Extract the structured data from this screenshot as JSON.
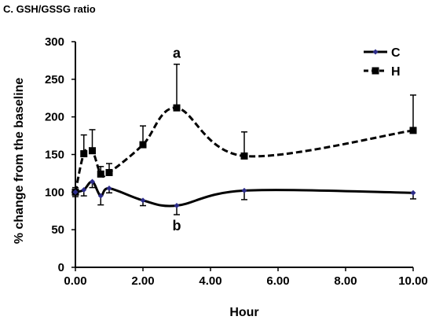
{
  "panel_title": "C. GSH/GSSG ratio",
  "chart_data": {
    "type": "line",
    "title": "C. GSH/GSSG ratio",
    "xlabel": "Hour",
    "ylabel": "% change from the baseline",
    "xlim": [
      0,
      10
    ],
    "ylim": [
      0,
      300
    ],
    "x_ticks": [
      "0.00",
      "2.00",
      "4.00",
      "6.00",
      "8.00",
      "10.00"
    ],
    "y_ticks": [
      "0",
      "50",
      "100",
      "150",
      "200",
      "250",
      "300"
    ],
    "grid": false,
    "legend_position": "top-right",
    "series": [
      {
        "name": "C",
        "color": "#000000",
        "marker_color": "#2d2d8a",
        "line_style": "solid",
        "marker": "diamond",
        "error_direction": "down",
        "x": [
          0,
          0.25,
          0.5,
          0.75,
          1,
          2,
          3,
          5,
          10
        ],
        "y": [
          100,
          103,
          114,
          95,
          105,
          89,
          82,
          102,
          99
        ],
        "error": [
          6,
          8,
          8,
          12,
          6,
          7,
          12,
          12,
          8
        ]
      },
      {
        "name": "H",
        "color": "#000000",
        "marker_color": "#000000",
        "line_style": "dashed",
        "marker": "square",
        "error_direction": "up",
        "x": [
          0,
          0.25,
          0.5,
          0.75,
          1,
          2,
          3,
          5,
          10
        ],
        "y": [
          100,
          151,
          155,
          124,
          126,
          163,
          212,
          148,
          182
        ],
        "error": [
          6,
          25,
          28,
          10,
          12,
          25,
          58,
          32,
          47
        ]
      }
    ],
    "annotations": [
      {
        "text": "a",
        "x": 3,
        "y": 212
      },
      {
        "text": "b",
        "x": 3,
        "y": 82
      }
    ]
  }
}
